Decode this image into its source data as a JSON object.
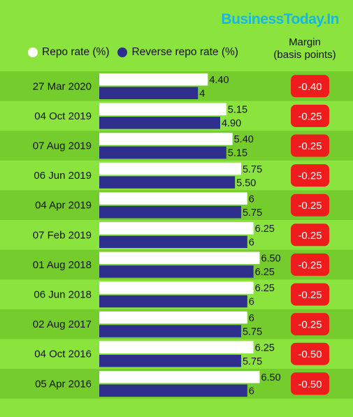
{
  "brand": "BusinessToday.In",
  "legend": {
    "repo": "Repo rate (%)",
    "reverse": "Reverse repo rate (%)"
  },
  "margin_header": {
    "line1": "Margin",
    "line2": "(basis points)"
  },
  "colors": {
    "background": "#8be33e",
    "band_dark": "#74cc2d",
    "repo": "#ffffff",
    "reverse": "#2e2f8c",
    "margin_badge": "#ee1c1c"
  },
  "chart_data": {
    "type": "bar",
    "orientation": "horizontal",
    "categories": [
      "27 Mar 2020",
      "04 Oct 2019",
      "07 Aug 2019",
      "06 Jun 2019",
      "04 Apr 2019",
      "07 Feb 2019",
      "01 Aug 2018",
      "06 Jun 2018",
      "02 Aug 2017",
      "04 Oct 2016",
      "05 Apr 2016"
    ],
    "series": [
      {
        "name": "Repo rate (%)",
        "values": [
          4.4,
          5.15,
          5.4,
          5.75,
          6,
          6.25,
          6.5,
          6.25,
          6,
          6.25,
          6.5
        ],
        "labels": [
          "4.40",
          "5.15",
          "5.40",
          "5.75",
          "6",
          "6.25",
          "6.50",
          "6.25",
          "6",
          "6.25",
          "6.50"
        ]
      },
      {
        "name": "Reverse repo rate (%)",
        "values": [
          4,
          4.9,
          5.15,
          5.5,
          5.75,
          6,
          6.25,
          6,
          5.75,
          5.75,
          6
        ],
        "labels": [
          "4",
          "4.90",
          "5.15",
          "5.50",
          "5.75",
          "6",
          "6.25",
          "6",
          "5.75",
          "5.75",
          "6"
        ]
      }
    ],
    "margin_labels": [
      "-0.40",
      "-0.25",
      "-0.25",
      "-0.25",
      "-0.25",
      "-0.25",
      "-0.25",
      "-0.25",
      "-0.25",
      "-0.50",
      "-0.50"
    ],
    "xlim": [
      0,
      6.5
    ],
    "legend_position": "top-left",
    "grid": false
  }
}
